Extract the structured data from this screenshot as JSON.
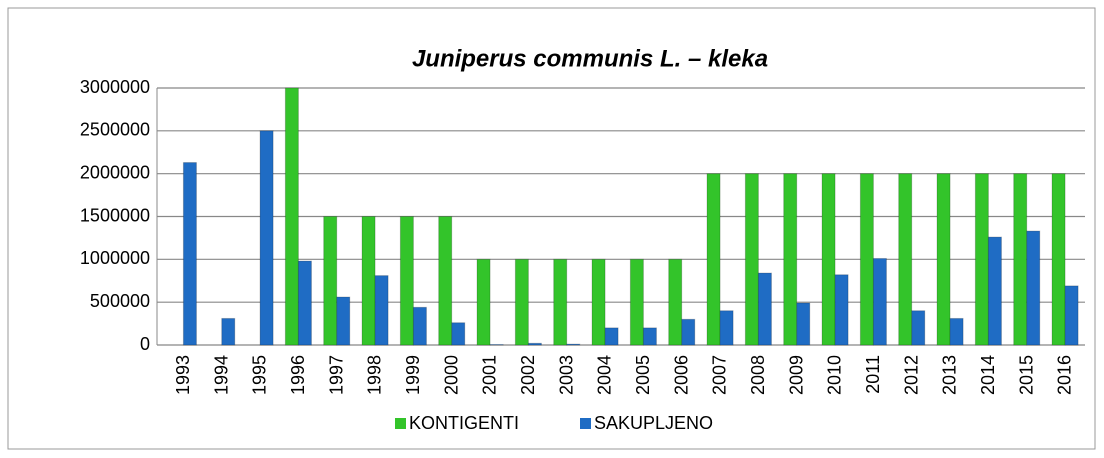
{
  "chart_data": {
    "type": "bar",
    "title": "Juniperus communis L. – kleka",
    "categories": [
      "1993",
      "1994",
      "1995",
      "1996",
      "1997",
      "1998",
      "1999",
      "2000",
      "2001",
      "2002",
      "2003",
      "2004",
      "2005",
      "2006",
      "2007",
      "2008",
      "2009",
      "2010",
      "2011",
      "2012",
      "2013",
      "2014",
      "2015",
      "2016"
    ],
    "series": [
      {
        "name": "KONTIGENTI",
        "color": "#33c42a",
        "values": [
          0,
          0,
          0,
          3000000,
          1500000,
          1500000,
          1500000,
          1500000,
          1000000,
          1000000,
          1000000,
          1000000,
          1000000,
          1000000,
          2000000,
          2000000,
          2000000,
          2000000,
          2000000,
          2000000,
          2000000,
          2000000,
          2000000,
          2000000
        ]
      },
      {
        "name": "SAKUPLJENO",
        "color": "#1f6cc4",
        "values": [
          2130000,
          310000,
          2500000,
          980000,
          560000,
          810000,
          440000,
          260000,
          5000,
          20000,
          10000,
          200000,
          200000,
          300000,
          400000,
          840000,
          490000,
          820000,
          1010000,
          400000,
          310000,
          1260000,
          1330000,
          690000
        ]
      }
    ],
    "ylim": [
      0,
      3000000
    ],
    "yticks": [
      0,
      500000,
      1000000,
      1500000,
      2000000,
      2500000,
      3000000
    ],
    "grid": true,
    "legend": "bottom"
  }
}
